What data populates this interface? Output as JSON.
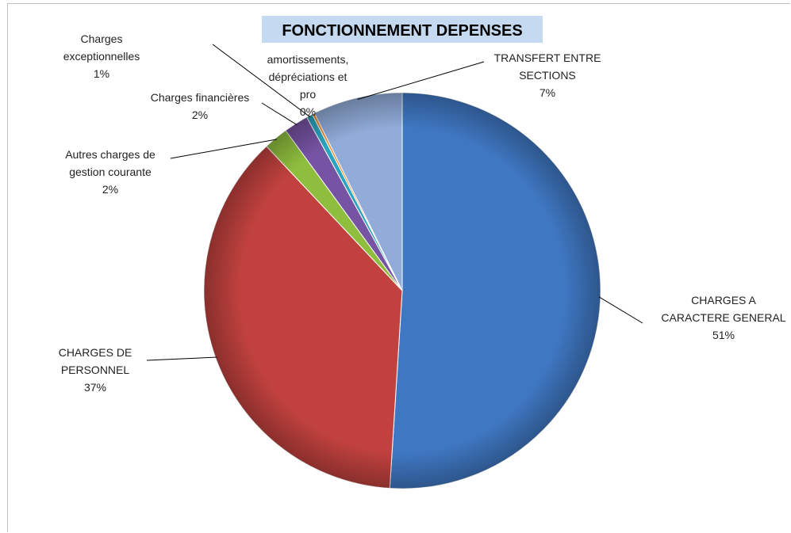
{
  "chart_data": {
    "type": "pie",
    "title": "FONCTIONNEMENT DEPENSES",
    "slices": [
      {
        "label_lines": [
          "CHARGES A",
          "CARACTERE GENERAL"
        ],
        "pct_label": "51%",
        "value": 51,
        "color": "#3f77c2"
      },
      {
        "label_lines": [
          "CHARGES DE",
          "PERSONNEL"
        ],
        "pct_label": "37%",
        "value": 37,
        "color": "#c0413e"
      },
      {
        "label_lines": [
          "Autres charges de",
          "gestion courante"
        ],
        "pct_label": "2%",
        "value": 2,
        "color": "#8fbe3e"
      },
      {
        "label_lines": [
          "Charges financières"
        ],
        "pct_label": "2%",
        "value": 2,
        "color": "#7653a3"
      },
      {
        "label_lines": [
          "Charges",
          "exceptionnelles"
        ],
        "pct_label": "1%",
        "value": 0.5,
        "color": "#2aa4bf"
      },
      {
        "label_lines": [
          "amortissements,",
          "dépréciations et",
          "pro"
        ],
        "pct_label": "0%",
        "value": 0.2,
        "color": "#f08a2e"
      },
      {
        "label_lines": [
          "TRANSFERT ENTRE",
          "SECTIONS"
        ],
        "pct_label": "7%",
        "value": 7.3,
        "color": "#91acd9"
      }
    ],
    "legend": "none"
  }
}
